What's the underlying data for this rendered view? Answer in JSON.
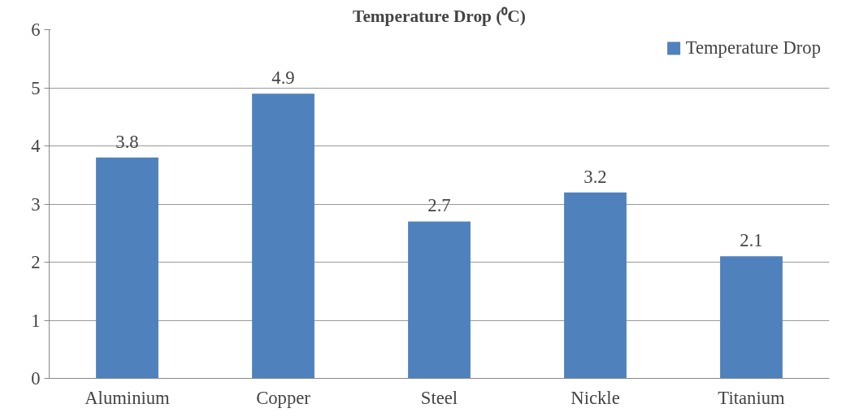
{
  "chart_data": {
    "type": "bar",
    "title": "Temperature Drop (⁰C)",
    "categories": [
      "Aluminium",
      "Copper",
      "Steel",
      "Nickle",
      "Titanium"
    ],
    "series": [
      {
        "name": "Temperature Drop",
        "color": "#4f81bd",
        "values": [
          3.8,
          4.9,
          2.7,
          3.2,
          2.1
        ]
      }
    ],
    "ylim": [
      0,
      6
    ],
    "yticks": [
      0,
      1,
      2,
      3,
      4,
      5,
      6
    ],
    "grid": "y",
    "legend": "top right",
    "data_labels": true
  }
}
